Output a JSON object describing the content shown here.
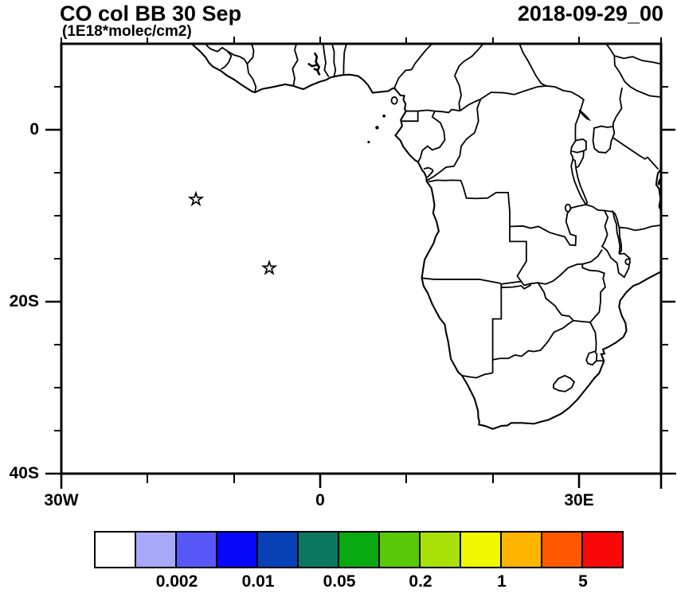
{
  "header": {
    "title": "CO col BB 30 Sep",
    "subtitle": "(1E18*molec/cm2)",
    "timestamp": "2018-09-29_00"
  },
  "axes": {
    "y_tick_labels": [
      "0",
      "20S",
      "40S"
    ],
    "x_tick_labels": [
      "30W",
      "0",
      "30E"
    ]
  },
  "colorbar": {
    "labels": [
      "0.002",
      "0.01",
      "0.05",
      "0.2",
      "1",
      "5"
    ],
    "colors": [
      "#ffffff",
      "#a8a8f8",
      "#5858f8",
      "#0808f8",
      "#0840b8",
      "#0a7860",
      "#08a810",
      "#58c808",
      "#a8e008",
      "#f0f800",
      "#ffb400",
      "#ff5800",
      "#f80808"
    ]
  },
  "markers": [
    {
      "symbol": "star",
      "lon": -14.4,
      "lat": -8.1
    },
    {
      "symbol": "star",
      "lon": -5.9,
      "lat": -16.1
    }
  ],
  "chart_data": {
    "type": "map",
    "title": "CO col BB 30 Sep",
    "units": "1E18*molec/cm2",
    "timestamp": "2018-09-29_00",
    "projection": "cylindrical-equidistant",
    "region": "Africa / eastern tropical Atlantic",
    "lon_range": [
      -30,
      40
    ],
    "lat_range": [
      -40,
      10
    ],
    "x_tick_labels": [
      "30W",
      "0",
      "30E"
    ],
    "y_tick_labels": [
      "0",
      "20S",
      "40S"
    ],
    "grid": false,
    "legend_position": "bottom colorbar",
    "colorbar_labels": [
      "0.002",
      "0.01",
      "0.05",
      "0.2",
      "1",
      "5"
    ],
    "colorbar_colors": [
      "#ffffff",
      "#a8a8f8",
      "#5858f8",
      "#0808f8",
      "#0840b8",
      "#0a7860",
      "#08a810",
      "#58c808",
      "#a8e008",
      "#f0f800",
      "#ffb400",
      "#ff5800",
      "#f80808"
    ],
    "filled_field": "no shaded contours visible; entire map below lowest level (white)",
    "markers": [
      {
        "symbol": "star",
        "lon": -14.4,
        "lat": -8.1
      },
      {
        "symbol": "star",
        "lon": -5.9,
        "lat": -16.1
      }
    ]
  }
}
